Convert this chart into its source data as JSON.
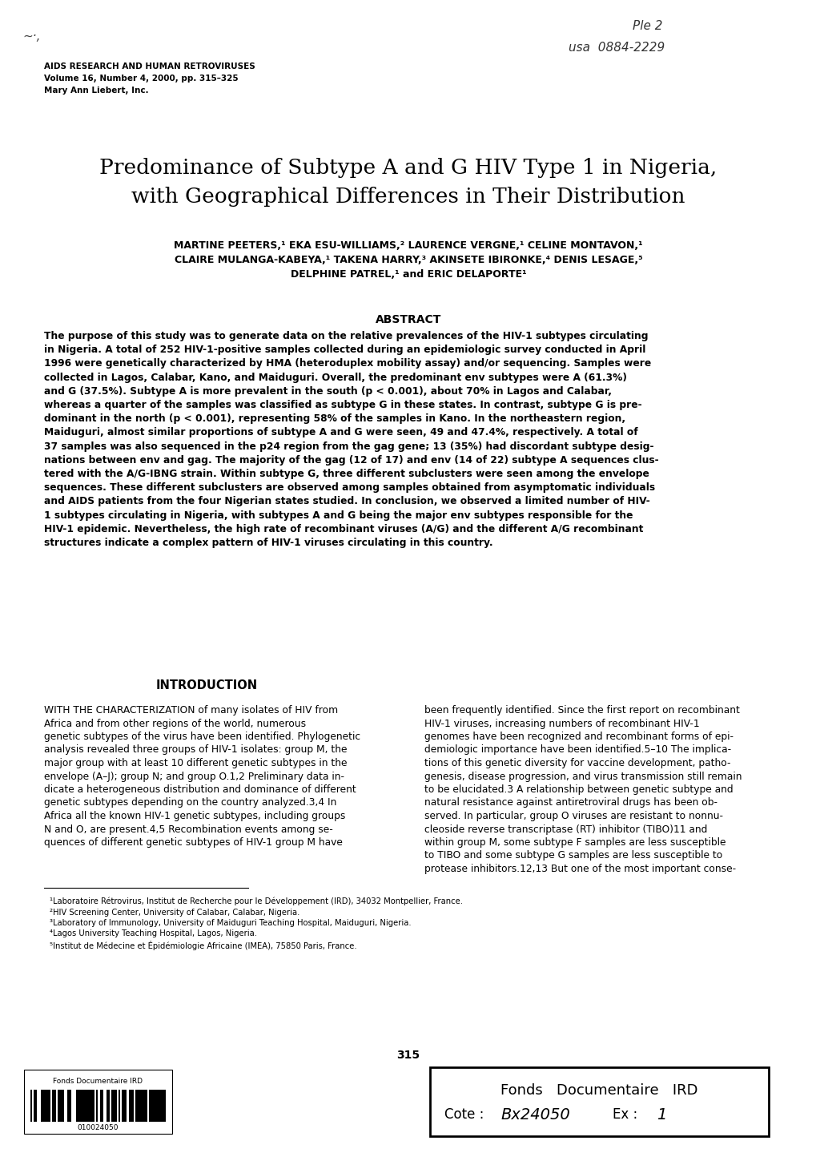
{
  "page_bg": "#ffffff",
  "journal_line1": "AIDS RESEARCH AND HUMAN RETROVIRUSES",
  "journal_line2": "Volume 16, Number 4, 2000, pp. 315–325",
  "journal_line3": "Mary Ann Liebert, Inc.",
  "title_line1": "Predominance of Subtype A and G HIV Type 1 in Nigeria,",
  "title_line2": "with Geographical Differences in Their Distribution",
  "authors_line1": "MARTINE PEETERS,¹ EKA ESU-WILLIAMS,² LAURENCE VERGNE,¹ CELINE MONTAVON,¹",
  "authors_line2": "CLAIRE MULANGA-KABEYA,¹ TAKENA HARRY,³ AKINSETE IBIRONKE,⁴ DENIS LESAGE,⁵",
  "authors_line3": "DELPHINE PATREL,¹ and ERIC DELAPORTE¹",
  "abstract_header": "ABSTRACT",
  "abstract_lines": [
    "The purpose of this study was to generate data on the relative prevalences of the HIV-1 subtypes circulating",
    "in Nigeria. A total of 252 HIV-1-positive samples collected during an epidemiologic survey conducted in April",
    "1996 were genetically characterized by HMA (heteroduplex mobility assay) and/or sequencing. Samples were",
    "collected in Lagos, Calabar, Kano, and Maiduguri. Overall, the predominant env subtypes were A (61.3%)",
    "and G (37.5%). Subtype A is more prevalent in the south (p < 0.001), about 70% in Lagos and Calabar,",
    "whereas a quarter of the samples was classified as subtype G in these states. In contrast, subtype G is pre-",
    "dominant in the north (p < 0.001), representing 58% of the samples in Kano. In the northeastern region,",
    "Maiduguri, almost similar proportions of subtype A and G were seen, 49 and 47.4%, respectively. A total of",
    "37 samples was also sequenced in the p24 region from the gag gene; 13 (35%) had discordant subtype desig-",
    "nations between env and gag. The majority of the gag (12 of 17) and env (14 of 22) subtype A sequences clus-",
    "tered with the A/G-IBNG strain. Within subtype G, three different subclusters were seen among the envelope",
    "sequences. These different subclusters are observed among samples obtained from asymptomatic individuals",
    "and AIDS patients from the four Nigerian states studied. In conclusion, we observed a limited number of HIV-",
    "1 subtypes circulating in Nigeria, with subtypes A and G being the major env subtypes responsible for the",
    "HIV-1 epidemic. Nevertheless, the high rate of recombinant viruses (A/G) and the different A/G recombinant",
    "structures indicate a complex pattern of HIV-1 viruses circulating in this country."
  ],
  "intro_header": "INTRODUCTION",
  "intro_col1_lines": [
    "WITH THE CHARACTERIZATION of many isolates of HIV from",
    "Africa and from other regions of the world, numerous",
    "genetic subtypes of the virus have been identified. Phylogenetic",
    "analysis revealed three groups of HIV-1 isolates: group M, the",
    "major group with at least 10 different genetic subtypes in the",
    "envelope (A–J); group N; and group O.1,2 Preliminary data in-",
    "dicate a heterogeneous distribution and dominance of different",
    "genetic subtypes depending on the country analyzed.3,4 In",
    "Africa all the known HIV-1 genetic subtypes, including groups",
    "N and O, are present.4,5 Recombination events among se-",
    "quences of different genetic subtypes of HIV-1 group M have"
  ],
  "intro_col2_lines": [
    "been frequently identified. Since the first report on recombinant",
    "HIV-1 viruses, increasing numbers of recombinant HIV-1",
    "genomes have been recognized and recombinant forms of epi-",
    "demiologic importance have been identified.5–10 The implica-",
    "tions of this genetic diversity for vaccine development, patho-",
    "genesis, disease progression, and virus transmission still remain",
    "to be elucidated.3 A relationship between genetic subtype and",
    "natural resistance against antiretroviral drugs has been ob-",
    "served. In particular, group O viruses are resistant to nonnu-",
    "cleoside reverse transcriptase (RT) inhibitor (TIBO)11 and",
    "within group M, some subtype F samples are less susceptible",
    "to TIBO and some subtype G samples are less susceptible to",
    "protease inhibitors.12,13 But one of the most important conse-"
  ],
  "footnote_lines": [
    "¹Laboratoire Rétrovirus, Institut de Recherche pour le Développement (IRD), 34032 Montpellier, France.",
    "²HIV Screening Center, University of Calabar, Calabar, Nigeria.",
    "³Laboratory of Immunology, University of Maiduguri Teaching Hospital, Maiduguri, Nigeria.",
    "⁴Lagos University Teaching Hospital, Lagos, Nigeria.",
    "⁵Institut de Médecine et Épidémiologie Africaine (IMEA), 75850 Paris, France."
  ],
  "page_number": "315",
  "fonds_left_label": "Fonds Documentaire IRD",
  "fonds_left_barcode_num": "010024050",
  "fonds_right_line1": "Fonds   Documentaire   IRD",
  "fonds_right_line2": "Cote : βx24050   Ex : 1"
}
